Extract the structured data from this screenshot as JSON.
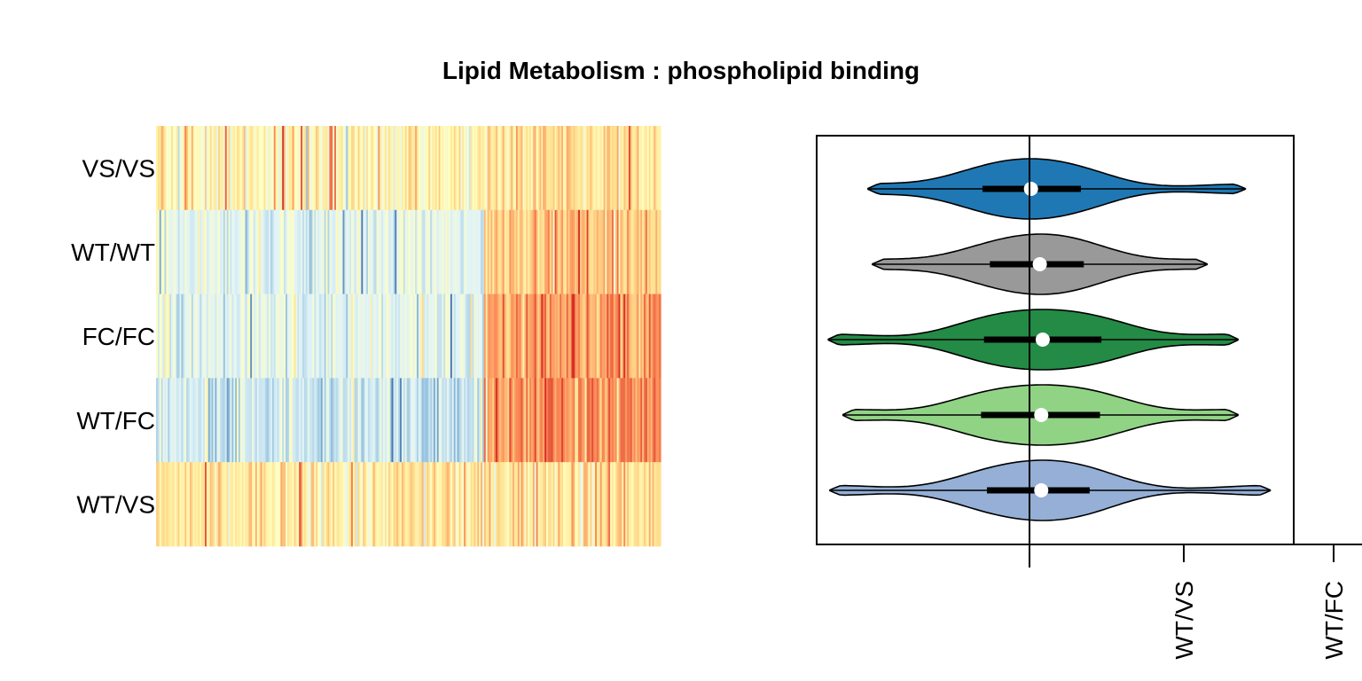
{
  "chart_data": [
    {
      "type": "heatmap",
      "title": "Lipid Metabolism : phospholipid binding",
      "rows": [
        "VS/VS",
        "WT/WT",
        "FC/FC",
        "WT/FC",
        "WT/VS"
      ],
      "color_scale": [
        "#4575b4",
        "#91bfdb",
        "#e0f3f8",
        "#ffffbf",
        "#fee090",
        "#fc8d59",
        "#d73027"
      ],
      "n_columns": 300,
      "split_fraction": 0.65,
      "row_profiles": [
        {
          "row": "VS/VS",
          "left_mean": 0.55,
          "right_mean": 0.62
        },
        {
          "row": "WT/WT",
          "left_mean": 0.36,
          "right_mean": 0.72
        },
        {
          "row": "FC/FC",
          "left_mean": 0.36,
          "right_mean": 0.8
        },
        {
          "row": "WT/FC",
          "left_mean": 0.3,
          "right_mean": 0.84
        },
        {
          "row": "WT/VS",
          "left_mean": 0.6,
          "right_mean": 0.66
        }
      ]
    },
    {
      "type": "violin",
      "orientation": "horizontal",
      "categories": [
        "VS/VS",
        "WT/WT",
        "FC/FC",
        "WT/FC",
        "WT/VS"
      ],
      "colors": [
        "#1f78b4",
        "#999999",
        "#238b45",
        "#90d385",
        "#95afd6"
      ],
      "reference_line": 0,
      "xlim": [
        -1.45,
        1.8
      ],
      "series": [
        {
          "category": "VS/VS",
          "min": -1.1,
          "q1": -0.32,
          "median": 0.01,
          "q3": 0.35,
          "max": 1.47
        },
        {
          "category": "WT/WT",
          "min": -1.07,
          "q1": -0.27,
          "median": 0.07,
          "q3": 0.37,
          "max": 1.21
        },
        {
          "category": "FC/FC",
          "min": -1.37,
          "q1": -0.31,
          "median": 0.09,
          "q3": 0.49,
          "max": 1.42
        },
        {
          "category": "WT/FC",
          "min": -1.27,
          "q1": -0.33,
          "median": 0.08,
          "q3": 0.48,
          "max": 1.42
        },
        {
          "category": "WT/VS",
          "min": -1.36,
          "q1": -0.29,
          "median": 0.08,
          "q3": 0.41,
          "max": 1.64
        }
      ],
      "x_tick_labels": [
        "WT/VS",
        "WT/FC"
      ]
    }
  ]
}
